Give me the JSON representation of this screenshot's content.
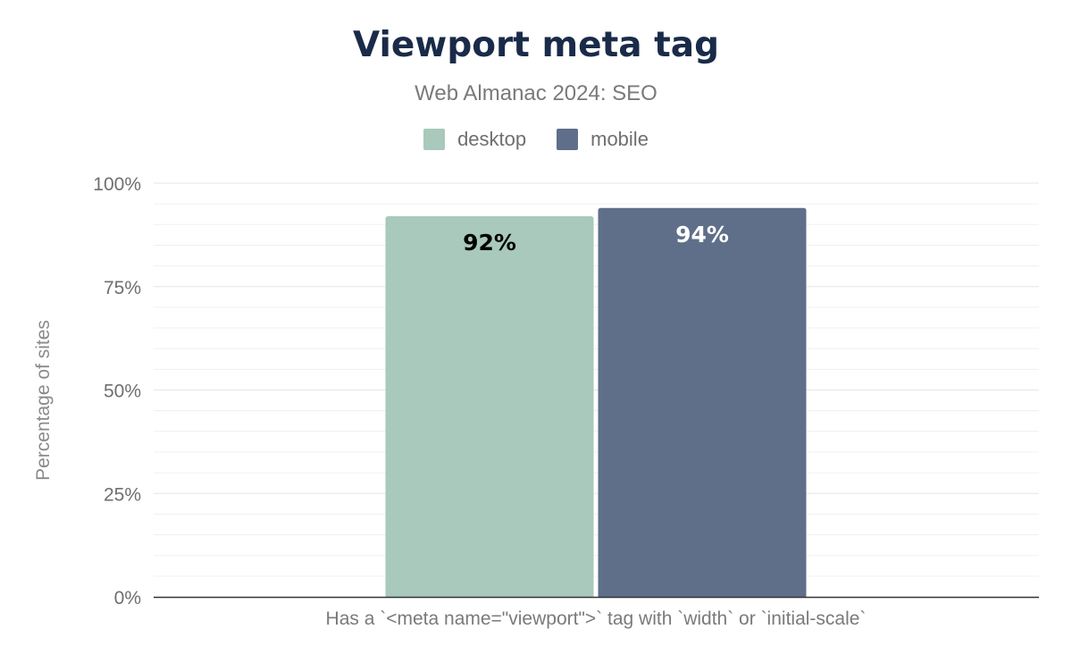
{
  "chart_data": {
    "type": "bar",
    "title": "Viewport meta tag",
    "subtitle": "Web Almanac 2024: SEO",
    "ylabel": "Percentage of sites",
    "xlabel": "",
    "categories": [
      "Has a `<meta name=\"viewport\">` tag with `width` or `initial-scale`"
    ],
    "series": [
      {
        "name": "desktop",
        "values": [
          92
        ],
        "color": "#a8c9bb",
        "label_color": "#000000"
      },
      {
        "name": "mobile",
        "values": [
          94
        ],
        "color": "#5f6f8a",
        "label_color": "#ffffff"
      }
    ],
    "ylim": [
      0,
      100
    ],
    "y_ticks": [
      0,
      25,
      50,
      75,
      100
    ],
    "y_tick_labels": [
      "0%",
      "25%",
      "50%",
      "75%",
      "100%"
    ],
    "data_labels": [
      "92%",
      "94%"
    ],
    "grid": true,
    "legend_position": "top-center"
  }
}
